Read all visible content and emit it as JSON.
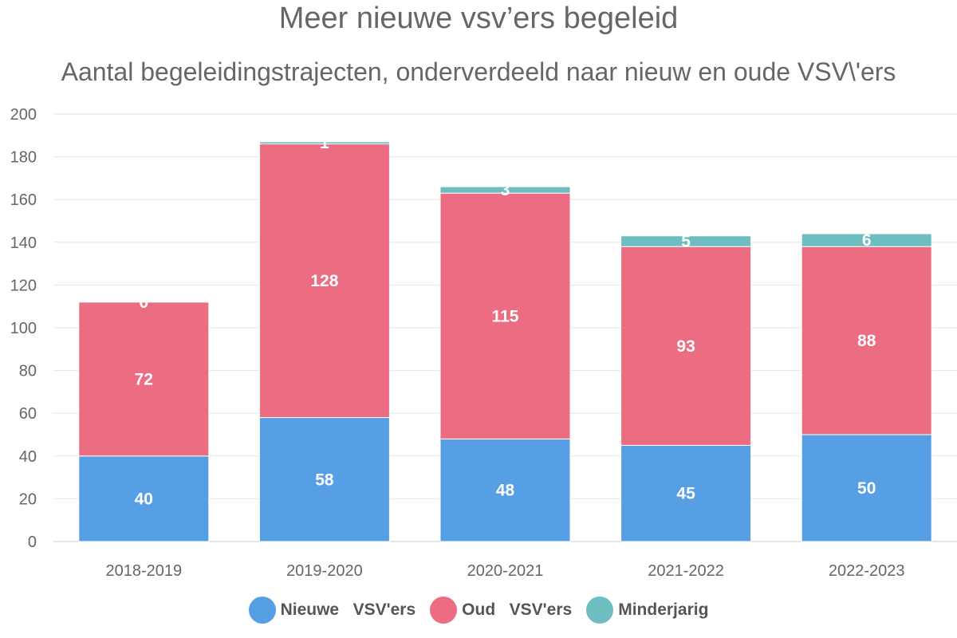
{
  "chart_data": {
    "type": "bar",
    "stacked": true,
    "title": "Meer nieuwe vsv’ers begeleid",
    "subtitle": "Aantal begeleidingstrajecten, onderverdeeld naar nieuw en oude VSV\\'ers",
    "categories": [
      "2018-2019",
      "2019-2020",
      "2020-2021",
      "2021-2022",
      "2022-2023"
    ],
    "series": [
      {
        "name": "Nieuwe   VSV'ers",
        "values": [
          40,
          58,
          48,
          45,
          50
        ],
        "color": "#579fe4"
      },
      {
        "name": "Oud   VSV'ers",
        "values": [
          72,
          128,
          115,
          93,
          88
        ],
        "color": "#ec6c82"
      },
      {
        "name": "Minderjarig",
        "values": [
          0,
          1,
          3,
          5,
          6
        ],
        "color": "#6dbdc1"
      }
    ],
    "ylim": [
      0,
      200
    ],
    "yticks": [
      0,
      20,
      40,
      60,
      80,
      100,
      120,
      140,
      160,
      180,
      200
    ],
    "grid": true,
    "legend": "bottom-center",
    "data_labels": true
  }
}
